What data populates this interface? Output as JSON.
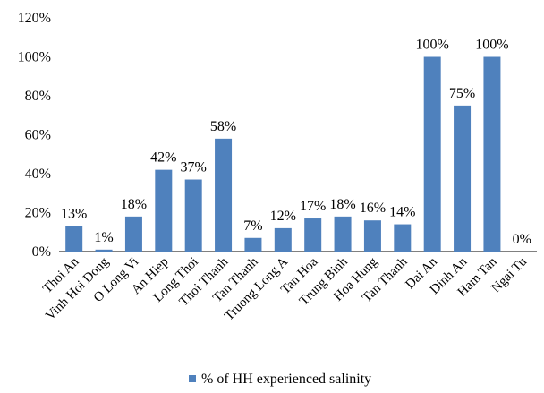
{
  "chart_data": {
    "type": "bar",
    "categories": [
      "Thoi An",
      "Vinh Hoi Dong",
      "O Long Vi",
      "An Hiep",
      "Long Thoi",
      "Thoi Thanh",
      "Tan Thanh",
      "Truong Long A",
      "Tan Hoa",
      "Trung Binh",
      "Hoa Hung",
      "Tan Thanh",
      "Dai An",
      "Dinh An",
      "Ham Tan",
      "Ngai Tu"
    ],
    "series": [
      {
        "name": "% of HH experienced salinity",
        "values": [
          13,
          1,
          18,
          42,
          37,
          58,
          7,
          12,
          17,
          18,
          16,
          14,
          100,
          75,
          100,
          0
        ],
        "labels": [
          "13%",
          "1%",
          "18%",
          "42%",
          "37%",
          "58%",
          "7%",
          "12%",
          "17%",
          "18%",
          "16%",
          "14%",
          "100%",
          "75%",
          "100%",
          "0%"
        ]
      }
    ],
    "yticks": [
      "0%",
      "20%",
      "40%",
      "60%",
      "80%",
      "100%",
      "120%"
    ],
    "ylim": [
      0,
      120
    ],
    "grid": false,
    "legend_position": "bottom",
    "bar_color": "#4f81bd"
  }
}
